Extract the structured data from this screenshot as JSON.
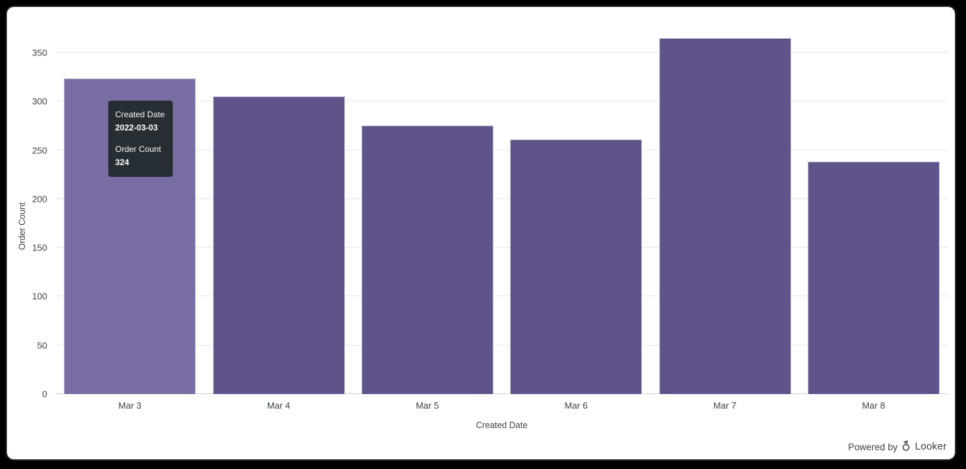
{
  "frame": {
    "outer_background": "#000000",
    "panel_background": "#ffffff"
  },
  "chart_data": {
    "type": "bar",
    "title": "",
    "categories": [
      "Mar 3",
      "Mar 4",
      "Mar 5",
      "Mar 6",
      "Mar 7",
      "Mar 8"
    ],
    "values": [
      324,
      305,
      275,
      261,
      365,
      238
    ],
    "xlabel": "Created Date",
    "ylabel": "Order Count",
    "ylim": [
      0,
      350
    ],
    "y_ticks": [
      0,
      50,
      100,
      150,
      200,
      250,
      300,
      350
    ],
    "grid": true,
    "legend_position": "none",
    "bar_color": "#5f5389",
    "bar_hover_color": "#7a6da3",
    "hovered_index": 0,
    "gridline_color": "#e6e6e6",
    "axis_line_color": "#ccd1d8",
    "label_color": "#3a4245"
  },
  "tooltip": {
    "dimension_label": "Created Date",
    "dimension_value": "2022-03-03",
    "measure_label": "Order Count",
    "measure_value": "324",
    "background": "#262d33",
    "text_color": "#ffffff"
  },
  "footer": {
    "powered_by_text": "Powered by",
    "brand_name": "Looker",
    "logo_icon": "looker-pennant-icon",
    "text_color": "#3a4245"
  }
}
